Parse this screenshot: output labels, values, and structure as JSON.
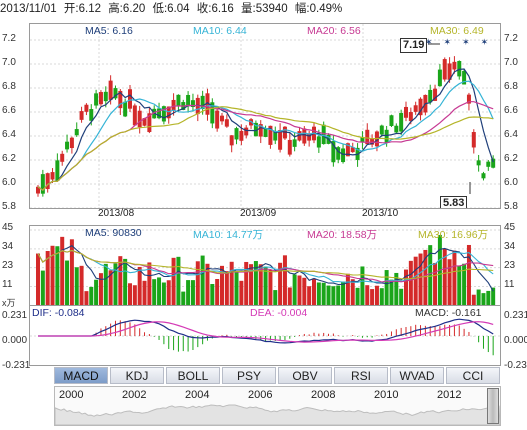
{
  "header": {
    "date": "2013/11/01",
    "open": "开:6.12",
    "high": "高:6.20",
    "low": "低:6.04",
    "close": "收:6.16",
    "volume": "量:53940",
    "change": "幅:0.49%"
  },
  "main": {
    "ma_labels": {
      "ma5": "MA5: 6.16",
      "ma10": "MA10: 6.44",
      "ma20": "MA20: 6.56",
      "ma30": "MA30: 6.49"
    },
    "y_ticks": [
      "7.2",
      "7.0",
      "6.8",
      "6.6",
      "6.4",
      "6.2",
      "6.0",
      "5.8"
    ],
    "x_ticks": [
      "2013/08",
      "2013/09",
      "2013/10"
    ],
    "max_callout": "7.19",
    "min_callout": "5.83"
  },
  "volume": {
    "labels": {
      "ma5": "MA5: 90830",
      "ma10": "MA10: 14.77万",
      "ma20": "MA20: 18.58万",
      "ma30": "MA30: 16.96万"
    },
    "y_ticks": [
      "45",
      "34",
      "23",
      "11"
    ],
    "unit": "x万"
  },
  "macd": {
    "labels": {
      "dif": "DIF: -0.084",
      "dea": "DEA: -0.004",
      "macd": "MACD: -0.161"
    },
    "y_ticks": [
      "0.231",
      "0.000",
      "-0.231"
    ]
  },
  "tabs": [
    "MACD",
    "KDJ",
    "BOLL",
    "PSY",
    "OBV",
    "RSI",
    "WVAD",
    "CCI"
  ],
  "active_tab": "MACD",
  "timeline_years": [
    "2000",
    "2002",
    "2004",
    "2006",
    "2008",
    "2010",
    "2012"
  ],
  "colors": {
    "up": "#d42a2a",
    "down": "#1aa51a",
    "ma5": "#1f3f7a",
    "ma10": "#36b4d6",
    "ma20": "#c73a93",
    "ma30": "#b5b52a",
    "dif": "#1f2f8a",
    "dea": "#d43ab6"
  }
}
